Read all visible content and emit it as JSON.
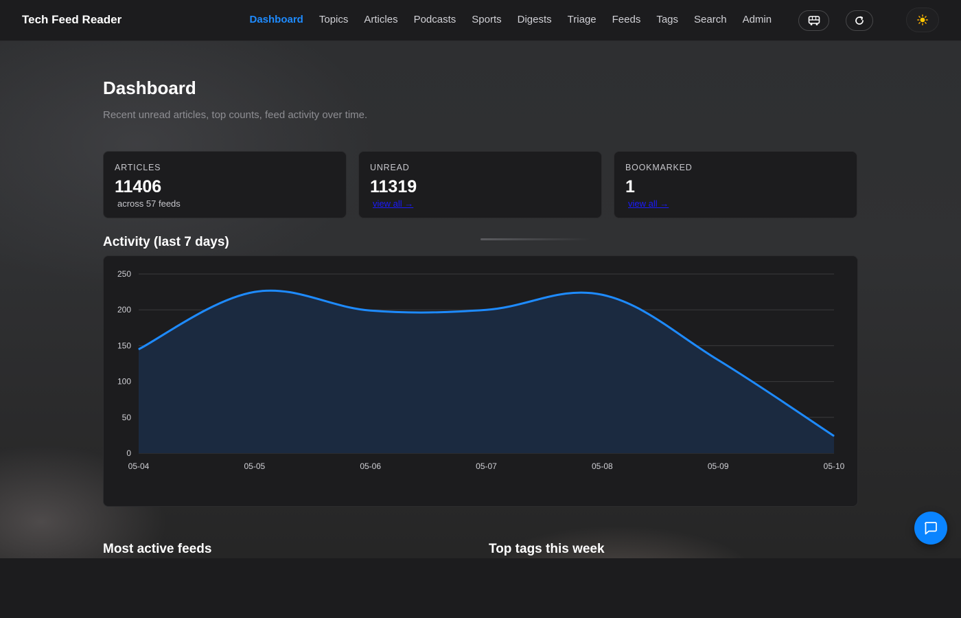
{
  "app": {
    "brand": "Tech Feed Reader"
  },
  "nav": {
    "items": [
      {
        "label": "Dashboard",
        "active": true
      },
      {
        "label": "Topics"
      },
      {
        "label": "Articles"
      },
      {
        "label": "Podcasts"
      },
      {
        "label": "Sports"
      },
      {
        "label": "Digests"
      },
      {
        "label": "Triage"
      },
      {
        "label": "Feeds"
      },
      {
        "label": "Tags"
      },
      {
        "label": "Search"
      },
      {
        "label": "Admin"
      }
    ],
    "icons": [
      "bus-icon",
      "refresh-icon",
      "sun-icon"
    ]
  },
  "page": {
    "title": "Dashboard",
    "subtitle": "Recent unread articles, top counts, feed activity over time."
  },
  "stats": {
    "articles": {
      "label": "ARTICLES",
      "value": "11406",
      "note": "across 57 feeds"
    },
    "unread": {
      "label": "UNREAD",
      "value": "11319",
      "link": "view all →"
    },
    "bookmarked": {
      "label": "BOOKMARKED",
      "value": "1",
      "link": "view all →"
    }
  },
  "activity": {
    "title": "Activity (last 7 days)"
  },
  "chart_data": {
    "type": "area",
    "x": [
      "05-04",
      "05-05",
      "05-06",
      "05-07",
      "05-08",
      "05-09",
      "05-10"
    ],
    "series": [
      {
        "values": [
          145,
          225,
          199,
          200,
          221,
          130,
          24
        ]
      }
    ],
    "ylim": [
      0,
      250
    ],
    "yticks": [
      0,
      50,
      100,
      150,
      200,
      250
    ],
    "grid": true,
    "colors": {
      "line": "#1e8bff",
      "fill": "#1b2a40",
      "grid": "#3a3a3c"
    }
  },
  "sections": {
    "most_active_feeds": "Most active feeds",
    "top_tags": "Top tags this week"
  },
  "colors": {
    "accent": "#1e8bff",
    "background": "#1c1c1e",
    "card": "#1c1c1e"
  }
}
